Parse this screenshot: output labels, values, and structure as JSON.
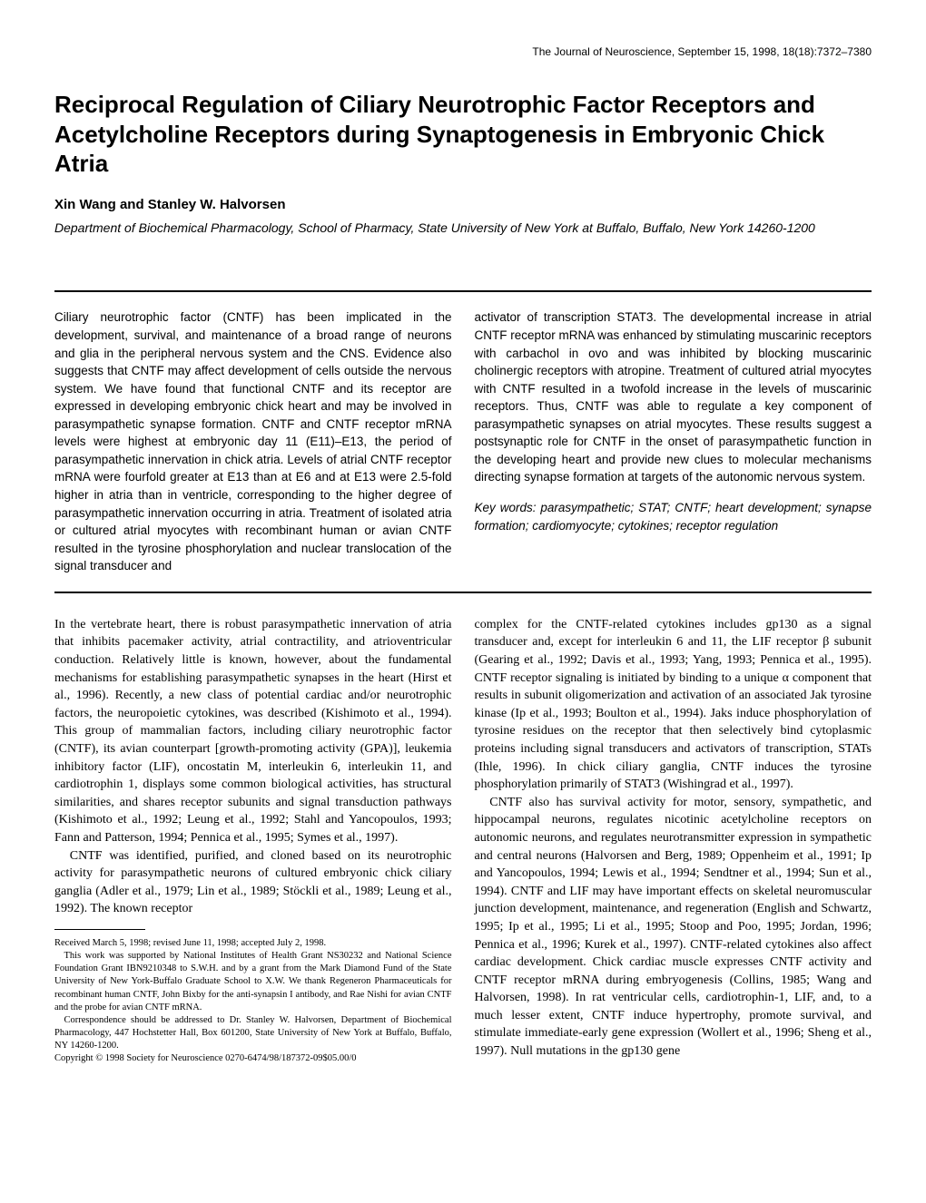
{
  "header": {
    "journal_line": "The Journal of Neuroscience, September 15, 1998, 18(18):7372–7380"
  },
  "title": "Reciprocal Regulation of Ciliary Neurotrophic Factor Receptors and Acetylcholine Receptors during Synaptogenesis in Embryonic Chick Atria",
  "authors": "Xin Wang and Stanley W. Halvorsen",
  "affiliation": "Department of Biochemical Pharmacology, School of Pharmacy, State University of New York at Buffalo, Buffalo, New York 14260-1200",
  "abstract": {
    "left": "Ciliary neurotrophic factor (CNTF) has been implicated in the development, survival, and maintenance of a broad range of neurons and glia in the peripheral nervous system and the CNS. Evidence also suggests that CNTF may affect development of cells outside the nervous system. We have found that functional CNTF and its receptor are expressed in developing embryonic chick heart and may be involved in parasympathetic synapse formation. CNTF and CNTF receptor mRNA levels were highest at embryonic day 11 (E11)–E13, the period of parasympathetic innervation in chick atria. Levels of atrial CNTF receptor mRNA were fourfold greater at E13 than at E6 and at E13 were 2.5-fold higher in atria than in ventricle, corresponding to the higher degree of parasympathetic innervation occurring in atria. Treatment of isolated atria or cultured atrial myocytes with recombinant human or avian CNTF resulted in the tyrosine phosphorylation and nuclear translocation of the signal transducer and",
    "right": "activator of transcription STAT3. The developmental increase in atrial CNTF receptor mRNA was enhanced by stimulating muscarinic receptors with carbachol in ovo and was inhibited by blocking muscarinic cholinergic receptors with atropine. Treatment of cultured atrial myocytes with CNTF resulted in a twofold increase in the levels of muscarinic receptors. Thus, CNTF was able to regulate a key component of parasympathetic synapses on atrial myocytes. These results suggest a postsynaptic role for CNTF in the onset of parasympathetic function in the developing heart and provide new clues to molecular mechanisms directing synapse formation at targets of the autonomic nervous system.",
    "keywords": "Key words: parasympathetic; STAT; CNTF; heart development; synapse formation; cardiomyocyte; cytokines; receptor regulation"
  },
  "body": {
    "left_p1": "In the vertebrate heart, there is robust parasympathetic innervation of atria that inhibits pacemaker activity, atrial contractility, and atrioventricular conduction. Relatively little is known, however, about the fundamental mechanisms for establishing parasympathetic synapses in the heart (Hirst et al., 1996). Recently, a new class of potential cardiac and/or neurotrophic factors, the neuropoietic cytokines, was described (Kishimoto et al., 1994). This group of mammalian factors, including ciliary neurotrophic factor (CNTF), its avian counterpart [growth-promoting activity (GPA)], leukemia inhibitory factor (LIF), oncostatin M, interleukin 6, interleukin 11, and cardiotrophin 1, displays some common biological activities, has structural similarities, and shares receptor subunits and signal transduction pathways (Kishimoto et al., 1992; Leung et al., 1992; Stahl and Yancopoulos, 1993; Fann and Patterson, 1994; Pennica et al., 1995; Symes et al., 1997).",
    "left_p2": "CNTF was identified, purified, and cloned based on its neurotrophic activity for parasympathetic neurons of cultured embryonic chick ciliary ganglia (Adler et al., 1979; Lin et al., 1989; Stöckli et al., 1989; Leung et al., 1992). The known receptor",
    "right_p1": "complex for the CNTF-related cytokines includes gp130 as a signal transducer and, except for interleukin 6 and 11, the LIF receptor β subunit (Gearing et al., 1992; Davis et al., 1993; Yang, 1993; Pennica et al., 1995). CNTF receptor signaling is initiated by binding to a unique α component that results in subunit oligomerization and activation of an associated Jak tyrosine kinase (Ip et al., 1993; Boulton et al., 1994). Jaks induce phosphorylation of tyrosine residues on the receptor that then selectively bind cytoplasmic proteins including signal transducers and activators of transcription, STATs (Ihle, 1996). In chick ciliary ganglia, CNTF induces the tyrosine phosphorylation primarily of STAT3 (Wishingrad et al., 1997).",
    "right_p2": "CNTF also has survival activity for motor, sensory, sympathetic, and hippocampal neurons, regulates nicotinic acetylcholine receptors on autonomic neurons, and regulates neurotransmitter expression in sympathetic and central neurons (Halvorsen and Berg, 1989; Oppenheim et al., 1991; Ip and Yancopoulos, 1994; Lewis et al., 1994; Sendtner et al., 1994; Sun et al., 1994). CNTF and LIF may have important effects on skeletal neuromuscular junction development, maintenance, and regeneration (English and Schwartz, 1995; Ip et al., 1995; Li et al., 1995; Stoop and Poo, 1995; Jordan, 1996; Pennica et al., 1996; Kurek et al., 1997). CNTF-related cytokines also affect cardiac development. Chick cardiac muscle expresses CNTF activity and CNTF receptor mRNA during embryogenesis (Collins, 1985; Wang and Halvorsen, 1998). In rat ventricular cells, cardiotrophin-1, LIF, and, to a much lesser extent, CNTF induce hypertrophy, promote survival, and stimulate immediate-early gene expression (Wollert et al., 1996; Sheng et al., 1997). Null mutations in the gp130 gene"
  },
  "footnote": {
    "received": "Received March 5, 1998; revised June 11, 1998; accepted July 2, 1998.",
    "support": "This work was supported by National Institutes of Health Grant NS30232 and National Science Foundation Grant IBN9210348 to S.W.H. and by a grant from the Mark Diamond Fund of the State University of New York-Buffalo Graduate School to X.W. We thank Regeneron Pharmaceuticals for recombinant human CNTF, John Bixby for the anti-synapsin I antibody, and Rae Nishi for avian CNTF and the probe for avian CNTF mRNA.",
    "correspondence": "Correspondence should be addressed to Dr. Stanley W. Halvorsen, Department of Biochemical Pharmacology, 447 Hochstetter Hall, Box 601200, State University of New York at Buffalo, Buffalo, NY 14260-1200.",
    "copyright": "Copyright © 1998 Society for Neuroscience   0270-6474/98/187372-09$05.00/0"
  }
}
